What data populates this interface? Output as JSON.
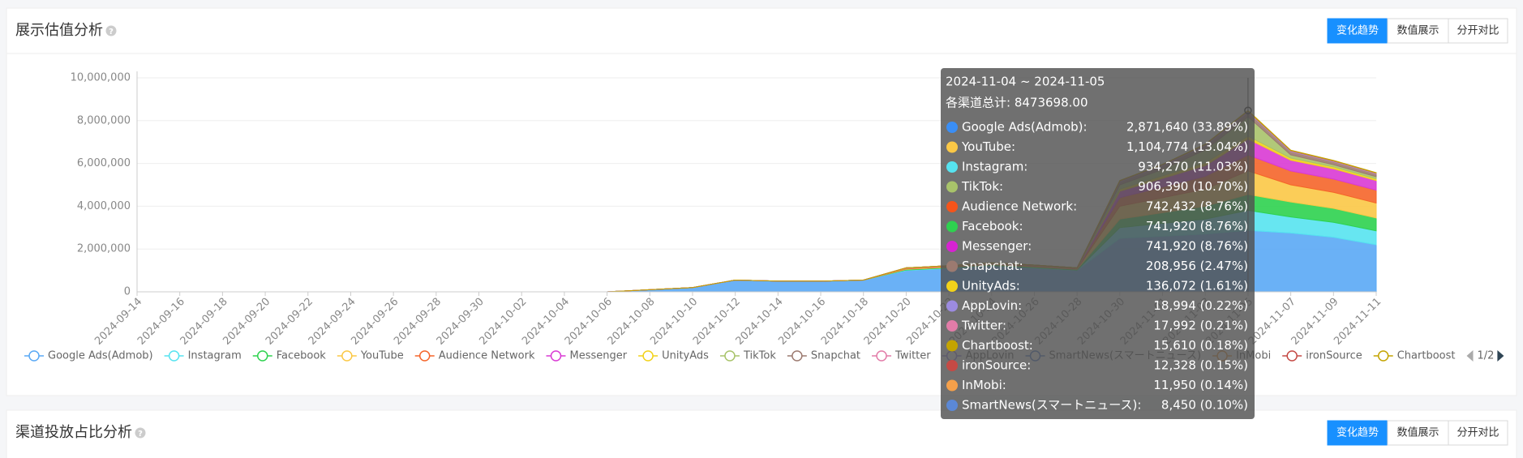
{
  "panels": [
    {
      "title": "展示估值分析",
      "buttons": [
        "变化趋势",
        "数值展示",
        "分开对比"
      ]
    },
    {
      "title": "渠道投放占比分析",
      "buttons": [
        "变化趋势",
        "数值展示",
        "分开对比"
      ]
    }
  ],
  "chart_data": {
    "type": "stacked_area",
    "categories": [
      "2024-09-14",
      "2024-09-16",
      "2024-09-18",
      "2024-09-20",
      "2024-09-22",
      "2024-09-24",
      "2024-09-26",
      "2024-09-28",
      "2024-09-30",
      "2024-10-02",
      "2024-10-04",
      "2024-10-06",
      "2024-10-08",
      "2024-10-10",
      "2024-10-12",
      "2024-10-14",
      "2024-10-16",
      "2024-10-18",
      "2024-10-20",
      "2024-10-22",
      "2024-10-24",
      "2024-10-26",
      "2024-10-28",
      "2024-10-30",
      "2024-11-01",
      "2024-11-03",
      "2024-11-05",
      "2024-11-07",
      "2024-11-09",
      "2024-11-11"
    ],
    "ylim": [
      0,
      10000000
    ],
    "yticks": [
      0,
      {
        "value": 2000000,
        "label": "2,000,000"
      },
      {
        "value": 4000000,
        "label": "4,000,000"
      },
      {
        "value": 6000000,
        "label": "6,000,000"
      },
      {
        "value": 8000000,
        "label": "8,000,000"
      },
      {
        "value": 10000000,
        "label": "10,000,000"
      }
    ],
    "grid": true,
    "legend_page": "1/2",
    "series": [
      {
        "name": "Google Ads(Admob)",
        "color": "#5aa9f5",
        "values": [
          0,
          0,
          0,
          0,
          0,
          0,
          0,
          0,
          0,
          0,
          0,
          0,
          100000,
          200000,
          550000,
          500000,
          500000,
          550000,
          1000000,
          1100000,
          1200000,
          1100000,
          1000000,
          2500000,
          2600000,
          2700000,
          2871640,
          2750000,
          2550000,
          2200000
        ]
      },
      {
        "name": "Instagram",
        "color": "#56e3f0",
        "values": [
          0,
          0,
          0,
          0,
          0,
          0,
          0,
          0,
          0,
          0,
          0,
          0,
          0,
          0,
          0,
          0,
          0,
          0,
          20000,
          20000,
          30000,
          30000,
          20000,
          500000,
          600000,
          700000,
          934270,
          750000,
          700000,
          650000
        ]
      },
      {
        "name": "Facebook",
        "color": "#2ed24f",
        "values": [
          0,
          0,
          0,
          0,
          0,
          0,
          0,
          0,
          0,
          0,
          0,
          0,
          0,
          0,
          0,
          0,
          0,
          0,
          30000,
          30000,
          40000,
          40000,
          30000,
          400000,
          500000,
          600000,
          741920,
          700000,
          650000,
          600000
        ]
      },
      {
        "name": "YouTube",
        "color": "#fbc846",
        "values": [
          0,
          0,
          0,
          0,
          0,
          0,
          0,
          0,
          0,
          0,
          0,
          0,
          0,
          0,
          0,
          0,
          0,
          0,
          20000,
          20000,
          30000,
          30000,
          20000,
          600000,
          700000,
          800000,
          1104774,
          800000,
          750000,
          700000
        ]
      },
      {
        "name": "Audience Network",
        "color": "#f5652a",
        "values": [
          0,
          0,
          0,
          0,
          0,
          0,
          0,
          0,
          0,
          0,
          0,
          0,
          0,
          0,
          0,
          0,
          0,
          0,
          20000,
          20000,
          20000,
          20000,
          20000,
          400000,
          500000,
          600000,
          742432,
          650000,
          620000,
          600000
        ]
      },
      {
        "name": "Messenger",
        "color": "#d93ad4",
        "values": [
          0,
          0,
          0,
          0,
          0,
          0,
          0,
          0,
          0,
          0,
          0,
          0,
          0,
          0,
          0,
          0,
          0,
          0,
          10000,
          10000,
          10000,
          10000,
          10000,
          300000,
          400000,
          500000,
          741920,
          500000,
          480000,
          450000
        ]
      },
      {
        "name": "UnityAds",
        "color": "#f2d21a",
        "values": [
          0,
          0,
          0,
          0,
          0,
          0,
          0,
          0,
          0,
          0,
          0,
          0,
          0,
          0,
          0,
          0,
          0,
          0,
          10000,
          10000,
          10000,
          10000,
          10000,
          100000,
          120000,
          130000,
          136072,
          100000,
          90000,
          80000
        ]
      },
      {
        "name": "TikTok",
        "color": "#a8c36a",
        "values": [
          0,
          0,
          0,
          0,
          0,
          0,
          0,
          0,
          0,
          0,
          0,
          0,
          0,
          0,
          0,
          0,
          0,
          0,
          5000,
          5000,
          5000,
          5000,
          5000,
          200000,
          300000,
          600000,
          906390,
          150000,
          100000,
          100000
        ]
      },
      {
        "name": "Snapchat",
        "color": "#9c7a70",
        "values": [
          0,
          0,
          0,
          0,
          0,
          0,
          0,
          0,
          0,
          0,
          0,
          0,
          0,
          0,
          0,
          0,
          0,
          0,
          5000,
          5000,
          5000,
          5000,
          5000,
          150000,
          180000,
          200000,
          208956,
          150000,
          140000,
          130000
        ]
      },
      {
        "name": "Twitter",
        "color": "#e27ca8",
        "values": [
          0,
          0,
          0,
          0,
          0,
          0,
          0,
          0,
          0,
          0,
          0,
          0,
          0,
          0,
          0,
          0,
          0,
          0,
          0,
          0,
          0,
          0,
          0,
          10000,
          12000,
          15000,
          17992,
          15000,
          14000,
          13000
        ]
      },
      {
        "name": "AppLovin",
        "color": "#9c8be0",
        "values": [
          0,
          0,
          0,
          0,
          0,
          0,
          0,
          0,
          0,
          0,
          0,
          0,
          0,
          0,
          0,
          0,
          0,
          0,
          0,
          0,
          0,
          0,
          0,
          10000,
          12000,
          15000,
          18994,
          15000,
          14000,
          13000
        ]
      },
      {
        "name": "SmartNews(スマートニュース)",
        "color": "#5b88d6",
        "values": [
          0,
          0,
          0,
          0,
          0,
          0,
          0,
          0,
          0,
          0,
          0,
          0,
          0,
          0,
          0,
          0,
          0,
          0,
          0,
          0,
          0,
          0,
          0,
          5000,
          6000,
          7000,
          8450,
          7000,
          6000,
          5000
        ]
      },
      {
        "name": "InMobi",
        "color": "#f5a04a",
        "values": [
          0,
          0,
          0,
          0,
          0,
          0,
          0,
          0,
          0,
          0,
          0,
          0,
          0,
          0,
          0,
          0,
          0,
          0,
          0,
          0,
          0,
          0,
          0,
          8000,
          9000,
          10000,
          11950,
          10000,
          9000,
          8000
        ]
      },
      {
        "name": "ironSource",
        "color": "#c54a45",
        "values": [
          0,
          0,
          0,
          0,
          0,
          0,
          0,
          0,
          0,
          0,
          0,
          0,
          0,
          0,
          0,
          0,
          0,
          0,
          0,
          0,
          0,
          0,
          0,
          8000,
          9000,
          10000,
          12328,
          10000,
          9000,
          8000
        ]
      },
      {
        "name": "Chartboost",
        "color": "#c4a400",
        "values": [
          0,
          0,
          0,
          0,
          0,
          0,
          0,
          0,
          0,
          0,
          0,
          0,
          0,
          0,
          0,
          0,
          0,
          0,
          0,
          0,
          0,
          0,
          0,
          10000,
          12000,
          14000,
          15610,
          12000,
          11000,
          10000
        ]
      }
    ]
  },
  "tooltip": {
    "title": "2024-11-04 ~ 2024-11-05",
    "total": "各渠道总计: 8473698.00",
    "rows": [
      {
        "name": "Google Ads(Admob):",
        "color": "#3a8ef5",
        "value": "2,871,640 (33.89%)"
      },
      {
        "name": "YouTube:",
        "color": "#fbc846",
        "value": "1,104,774 (13.04%)"
      },
      {
        "name": "Instagram:",
        "color": "#56e3f0",
        "value": "934,270 (11.03%)"
      },
      {
        "name": "TikTok:",
        "color": "#a8c36a",
        "value": "906,390 (10.70%)"
      },
      {
        "name": "Audience Network:",
        "color": "#f5541a",
        "value": "742,432 (8.76%)"
      },
      {
        "name": "Facebook:",
        "color": "#2ed24f",
        "value": "741,920 (8.76%)"
      },
      {
        "name": "Messenger:",
        "color": "#d722d2",
        "value": "741,920 (8.76%)"
      },
      {
        "name": "Snapchat:",
        "color": "#9c7a70",
        "value": "208,956 (2.47%)"
      },
      {
        "name": "UnityAds:",
        "color": "#f2d21a",
        "value": "136,072 (1.61%)"
      },
      {
        "name": "AppLovin:",
        "color": "#9c8be0",
        "value": "18,994 (0.22%)"
      },
      {
        "name": "Twitter:",
        "color": "#e27ca8",
        "value": "17,992 (0.21%)"
      },
      {
        "name": "Chartboost:",
        "color": "#c4a400",
        "value": "15,610 (0.18%)"
      },
      {
        "name": "ironSource:",
        "color": "#c54a45",
        "value": "12,328 (0.15%)"
      },
      {
        "name": "InMobi:",
        "color": "#f5a04a",
        "value": "11,950 (0.14%)"
      },
      {
        "name": "SmartNews(スマートニュース):",
        "color": "#5b88d6",
        "value": "8,450 (0.10%)"
      }
    ]
  }
}
